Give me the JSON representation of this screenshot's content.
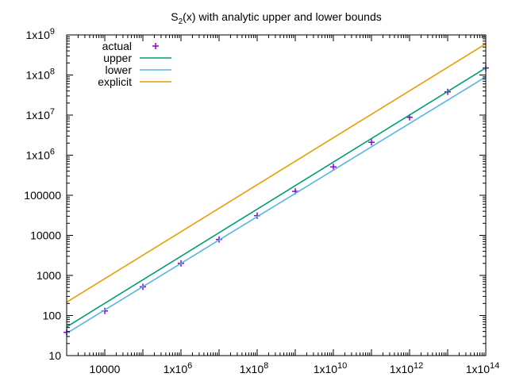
{
  "chart_data": {
    "type": "line",
    "title_main": "S",
    "title_sub": "2",
    "title_rest": "(x) with analytic upper and lower bounds",
    "xscale": "log",
    "yscale": "log",
    "xlim": [
      1000,
      100000000000000
    ],
    "ylim": [
      10,
      1000000000
    ],
    "grid": false,
    "legend_position": "top-left",
    "x_ticks": [
      {
        "value": 10000,
        "mant": "10000",
        "exp": ""
      },
      {
        "value": 1000000,
        "mant": "1x10",
        "exp": "6"
      },
      {
        "value": 100000000,
        "mant": "1x10",
        "exp": "8"
      },
      {
        "value": 10000000000,
        "mant": "1x10",
        "exp": "10"
      },
      {
        "value": 1000000000000,
        "mant": "1x10",
        "exp": "12"
      },
      {
        "value": 100000000000000,
        "mant": "1x10",
        "exp": "14"
      }
    ],
    "y_ticks": [
      {
        "value": 10,
        "mant": "10",
        "exp": ""
      },
      {
        "value": 100,
        "mant": "100",
        "exp": ""
      },
      {
        "value": 1000,
        "mant": "1000",
        "exp": ""
      },
      {
        "value": 10000,
        "mant": "10000",
        "exp": ""
      },
      {
        "value": 100000,
        "mant": "100000",
        "exp": ""
      },
      {
        "value": 1000000,
        "mant": "1x10",
        "exp": "6"
      },
      {
        "value": 10000000,
        "mant": "1x10",
        "exp": "7"
      },
      {
        "value": 100000000,
        "mant": "1x10",
        "exp": "8"
      },
      {
        "value": 1000000000,
        "mant": "1x10",
        "exp": "9"
      }
    ],
    "series": [
      {
        "name": "actual",
        "style": "points",
        "color": "#9400d3",
        "points": [
          [
            1000,
            38
          ],
          [
            10000,
            130
          ],
          [
            100000,
            520
          ],
          [
            1000000,
            2000
          ],
          [
            10000000,
            7900
          ],
          [
            100000000,
            31000
          ],
          [
            1000000000,
            125000
          ],
          [
            10000000000,
            510000
          ],
          [
            100000000000,
            2100000
          ],
          [
            1000000000000,
            8800000
          ],
          [
            10000000000000,
            38000000
          ],
          [
            100000000000000,
            150000000
          ]
        ]
      },
      {
        "name": "upper",
        "style": "line",
        "color": "#009e73",
        "points": [
          [
            1000,
            52
          ],
          [
            100000000000000,
            150000000
          ]
        ]
      },
      {
        "name": "lower",
        "style": "line",
        "color": "#56b4e9",
        "points": [
          [
            1000,
            36
          ],
          [
            100000000000000,
            90000000
          ]
        ]
      },
      {
        "name": "explicit",
        "style": "line",
        "color": "#e69f00",
        "points": [
          [
            1000,
            215
          ],
          [
            100000000000000,
            600000000
          ]
        ]
      }
    ]
  }
}
